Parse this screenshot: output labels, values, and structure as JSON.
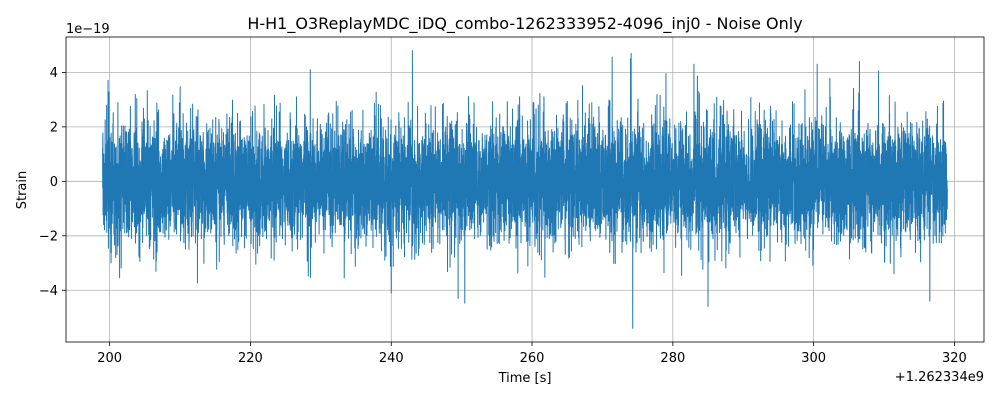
{
  "chart_data": {
    "type": "line",
    "title": "H-H1_O3ReplayMDC_iDQ_combo-1262333952-4096_inj0 - Noise Only",
    "xlabel": "Time [s]",
    "ylabel": "Strain",
    "x_offset_label": "+1.262334e9",
    "y_scale_label": "1e−19",
    "xlim": [
      193.8,
      324.2
    ],
    "ylim": [
      -5.9,
      5.3
    ],
    "x_ticks": [
      200,
      220,
      240,
      260,
      280,
      300,
      320
    ],
    "x_tick_labels": [
      "200",
      "220",
      "240",
      "260",
      "280",
      "300",
      "320"
    ],
    "y_ticks": [
      -4,
      -2,
      0,
      2,
      4
    ],
    "y_tick_labels": [
      "−4",
      "−2",
      "0",
      "2",
      "4"
    ],
    "grid": true,
    "series": [
      {
        "color": "#1f77b4",
        "x_range": [
          199.0,
          319.0
        ],
        "typical_envelope": [
          -2.5,
          2.5
        ],
        "approx_peaks": [
          {
            "x": 243.0,
            "y": 4.8
          },
          {
            "x": 274.0,
            "y": 4.5
          },
          {
            "x": 283.0,
            "y": 4.3
          },
          {
            "x": 300.5,
            "y": 4.3
          },
          {
            "x": 306.5,
            "y": 4.4
          },
          {
            "x": 228.5,
            "y": 4.1
          },
          {
            "x": 274.3,
            "y": -5.4
          },
          {
            "x": 249.5,
            "y": -4.3
          },
          {
            "x": 285.0,
            "y": -4.6
          },
          {
            "x": 316.5,
            "y": -4.4
          },
          {
            "x": 240.0,
            "y": -4.1
          }
        ]
      }
    ]
  }
}
